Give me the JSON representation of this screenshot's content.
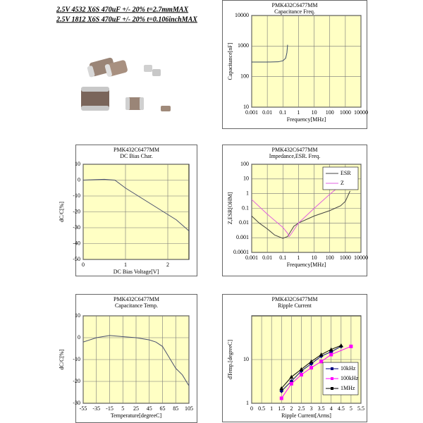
{
  "header": {
    "lines": [
      "2.5V 4532 X6S 470uF +/- 20% t=2.7mmMAX",
      "2.5V 1812 X6S 470uF +/- 20% t=0.106inchMAX"
    ]
  },
  "chart_data": [
    {
      "type": "line",
      "title": "PMK432C6477MM",
      "subtitle": "Capacitance Freq.",
      "xlabel": "Frequency[MHz]",
      "ylabel": "Capacitance[nF]",
      "xlog": true,
      "ylog": true,
      "xlim": [
        0.001,
        10000
      ],
      "ylim": [
        10,
        10000
      ],
      "xticks": [
        0.001,
        0.01,
        0.1,
        1,
        10,
        100,
        1000,
        10000
      ],
      "yticks": [
        10,
        100,
        1000,
        10000
      ],
      "grid": true,
      "series": [
        {
          "name": "Capacitance",
          "color": "#3a4a6a",
          "x": [
            0.001,
            0.01,
            0.05,
            0.1,
            0.15,
            0.18,
            0.2
          ],
          "values": [
            300,
            300,
            305,
            330,
            400,
            600,
            1100
          ]
        }
      ]
    },
    {
      "type": "line",
      "title": "PMK432C6477MM",
      "subtitle": "DC Bias Char.",
      "xlabel": "DC Bias Voltage[V]",
      "ylabel": "dC/C[%]",
      "xlim": [
        0,
        2.5
      ],
      "ylim": [
        -50,
        10
      ],
      "xticks": [
        0,
        1,
        2
      ],
      "yticks": [
        10,
        0,
        -10,
        -20,
        -30,
        -40,
        -50
      ],
      "grid": true,
      "series": [
        {
          "name": "dC/C",
          "color": "#4a5070",
          "x": [
            0,
            0.25,
            0.5,
            0.75,
            1,
            1.3,
            1.6,
            1.9,
            2.2,
            2.5
          ],
          "values": [
            0,
            0.3,
            0.5,
            0,
            -5,
            -10,
            -15,
            -20,
            -25,
            -32
          ]
        }
      ]
    },
    {
      "type": "line",
      "title": "PMK432C6477MM",
      "subtitle": "Impedance,ESR. Freq.",
      "xlabel": "Frequency[MHz]",
      "ylabel": "Z,ESR[OHM]",
      "xlog": true,
      "ylog": true,
      "xlim": [
        0.001,
        10000
      ],
      "ylim": [
        0.0001,
        100
      ],
      "xticks": [
        0.001,
        0.01,
        0.1,
        1,
        10,
        100,
        1000,
        10000
      ],
      "yticks": [
        0.0001,
        0.001,
        0.01,
        0.1,
        1,
        10,
        100
      ],
      "grid": true,
      "legend": "top-right",
      "series": [
        {
          "name": "ESR",
          "color": "#444444",
          "x": [
            0.001,
            0.003,
            0.01,
            0.03,
            0.1,
            0.2,
            0.5,
            1,
            10,
            100,
            500,
            1000,
            2000
          ],
          "values": [
            0.03,
            0.01,
            0.004,
            0.0015,
            0.0009,
            0.0012,
            0.006,
            0.01,
            0.03,
            0.07,
            0.15,
            0.3,
            1.5
          ]
        },
        {
          "name": "Z",
          "color": "#e060e0",
          "x": [
            0.001,
            0.01,
            0.1,
            0.2,
            0.25,
            0.3,
            1,
            10,
            100,
            1000,
            5000
          ],
          "values": [
            0.4,
            0.04,
            0.005,
            0.002,
            0.0012,
            0.0015,
            0.01,
            0.1,
            0.9,
            7,
            6
          ]
        }
      ]
    },
    {
      "type": "line",
      "title": "PMK432C6477MM",
      "subtitle": "Capacitance Temp.",
      "xlabel": "Temperature[degreeC]",
      "ylabel": "dC/C[%]",
      "xlim": [
        -55,
        105
      ],
      "ylim": [
        -30,
        10
      ],
      "xticks": [
        -55,
        -35,
        -15,
        5,
        25,
        45,
        65,
        85,
        105
      ],
      "yticks": [
        10,
        0,
        -10,
        -20,
        -30
      ],
      "grid": true,
      "series": [
        {
          "name": "dC/C",
          "color": "#4a5070",
          "x": [
            -55,
            -35,
            -15,
            5,
            25,
            45,
            55,
            65,
            75,
            85,
            95,
            105
          ],
          "values": [
            -2,
            0,
            1,
            0.5,
            0,
            -1,
            -2,
            -4,
            -9,
            -14,
            -17,
            -22
          ]
        }
      ]
    },
    {
      "type": "line",
      "title": "PMK432C6477MM",
      "subtitle": "Ripple Current",
      "xlabel": "Ripple Current[Arms]",
      "ylabel": "dTemp.[degreeC]",
      "ylog": true,
      "xlim": [
        0,
        5.5
      ],
      "ylim": [
        1,
        100
      ],
      "xticks": [
        0,
        0.5,
        1,
        1.5,
        2,
        2.5,
        3,
        3.5,
        4,
        4.5,
        5,
        5.5
      ],
      "yticks": [
        1,
        10
      ],
      "grid": true,
      "legend": "bottom-right",
      "series": [
        {
          "name": "10kHz",
          "color": "#000080",
          "marker": "diamond",
          "x": [
            1.5,
            2,
            2.5,
            3,
            3.5,
            4,
            4.5
          ],
          "values": [
            1.9,
            3.2,
            5.5,
            8,
            12,
            15,
            20
          ]
        },
        {
          "name": "100kHz",
          "color": "#ff00ff",
          "marker": "square",
          "x": [
            1.5,
            2,
            2.5,
            3,
            3.5,
            4,
            5
          ],
          "values": [
            1.3,
            2.8,
            4.5,
            6.5,
            9,
            13,
            20
          ]
        },
        {
          "name": "1MHz",
          "color": "#000000",
          "marker": "triangle",
          "x": [
            1.5,
            2,
            2.5,
            3,
            3.5,
            4,
            4.5
          ],
          "values": [
            2.2,
            4,
            6,
            9,
            13,
            17,
            21
          ]
        }
      ]
    }
  ]
}
